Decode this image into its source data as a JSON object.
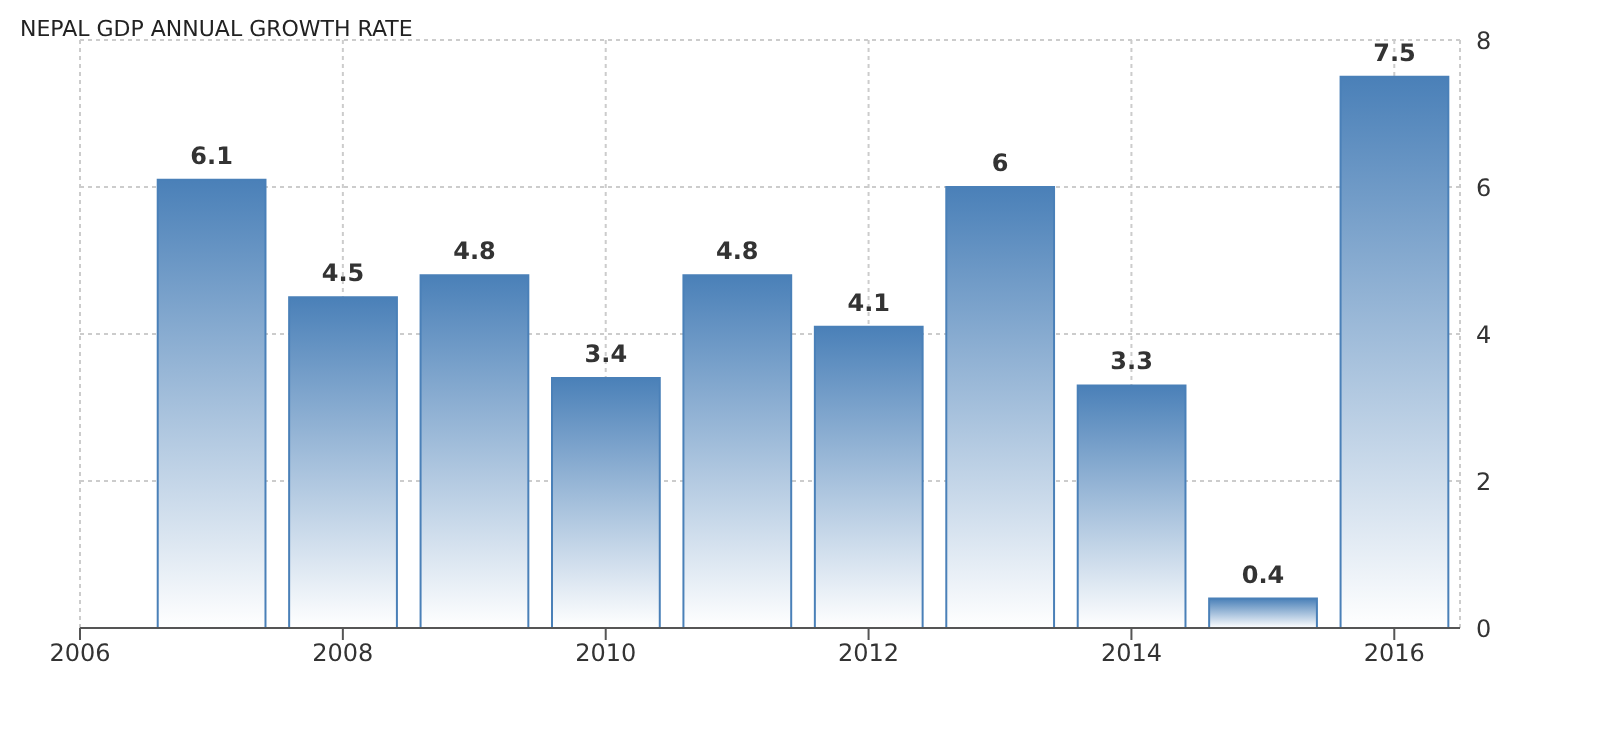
{
  "chart_data": {
    "type": "bar",
    "title": "NEPAL GDP ANNUAL GROWTH RATE",
    "x": [
      2007,
      2008,
      2009,
      2010,
      2011,
      2012,
      2013,
      2014,
      2015,
      2016
    ],
    "values": [
      6.1,
      4.5,
      4.8,
      3.4,
      4.8,
      4.1,
      6,
      3.3,
      0.4,
      7.5
    ],
    "color": "#4a80b8",
    "xlim": [
      2006,
      2016.5
    ],
    "xticks": [
      2006,
      2008,
      2010,
      2012,
      2014,
      2016
    ],
    "ylim": [
      0,
      8
    ],
    "yticks": [
      0,
      2,
      4,
      6,
      8
    ],
    "grid": true,
    "data_labels": true
  }
}
